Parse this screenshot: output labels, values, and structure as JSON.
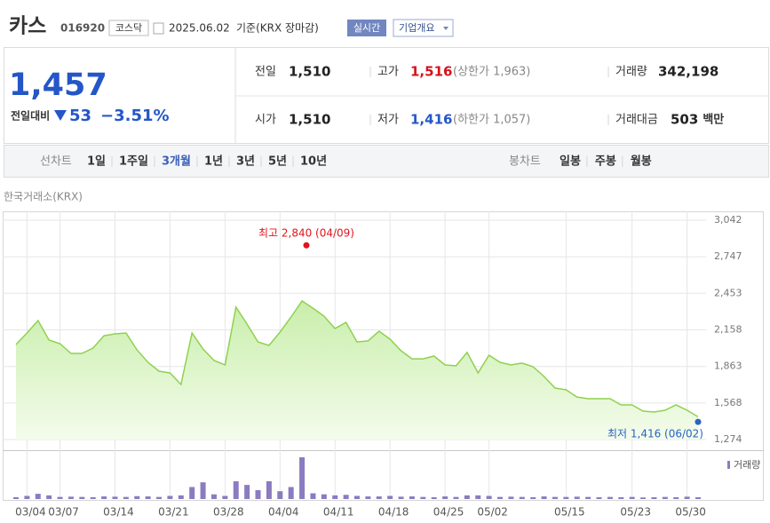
{
  "header": {
    "name": "카스",
    "code": "016920",
    "market": "코스닥",
    "date": "2025.06.02",
    "basis": "기준(KRX 장마감)",
    "realtime": "실시간",
    "company": "기업개요"
  },
  "quote": {
    "price": "1,457",
    "change_label": "전일대비",
    "change": "53",
    "change_pct": "−3.51%",
    "stats": [
      {
        "label": "전일",
        "value": "1,510"
      },
      {
        "label": "고가",
        "value": "1,516",
        "note": "(상한가 1,963)"
      },
      {
        "label": "거래량",
        "value": "342,198"
      },
      {
        "label": "시가",
        "value": "1,510"
      },
      {
        "label": "저가",
        "value": "1,416",
        "note": "(하한가 1,057)"
      },
      {
        "label": "거래대금",
        "value": "503",
        "unit": "백만"
      }
    ]
  },
  "tabs": {
    "line_label": "선차트",
    "line": [
      "1일",
      "1주일",
      "3개월",
      "1년",
      "3년",
      "5년",
      "10년"
    ],
    "selected": 2,
    "candle_label": "봉차트",
    "candle": [
      "일봉",
      "주봉",
      "월봉"
    ]
  },
  "chart_data": [
    {
      "type": "area",
      "subtitle": "한국거래소(KRX)",
      "color": "#8fd14f",
      "categories": [
        null,
        "03/04",
        null,
        null,
        "03/07",
        null,
        null,
        null,
        null,
        "03/14",
        null,
        null,
        null,
        null,
        "03/21",
        null,
        null,
        null,
        null,
        "03/28",
        null,
        null,
        null,
        null,
        "04/04",
        null,
        null,
        null,
        null,
        "04/11",
        null,
        null,
        null,
        null,
        "04/18",
        null,
        null,
        null,
        null,
        "04/25",
        null,
        null,
        null,
        "05/02",
        null,
        null,
        null,
        null,
        null,
        null,
        "05/15",
        null,
        null,
        null,
        null,
        null,
        "05/23",
        null,
        null,
        null,
        null,
        "05/30",
        null
      ],
      "values": [
        2040,
        2133,
        2233,
        2076,
        2047,
        1968,
        1968,
        2011,
        2111,
        2126,
        2133,
        1996,
        1897,
        1825,
        1811,
        1718,
        2133,
        2004,
        1911,
        1875,
        2341,
        2205,
        2061,
        2033,
        2140,
        2262,
        2391,
        2333,
        2269,
        2169,
        2219,
        2061,
        2069,
        2147,
        2083,
        1990,
        1925,
        1925,
        1947,
        1875,
        1868,
        1976,
        1811,
        1954,
        1897,
        1875,
        1890,
        1861,
        1782,
        1689,
        1675,
        1617,
        1603,
        1603,
        1603,
        1553,
        1553,
        1503,
        1496,
        1510,
        1553,
        1510,
        1457
      ],
      "ylim": [
        1274,
        3042
      ],
      "yticks": [
        {
          "value": 1274,
          "label": "1,274"
        },
        {
          "value": 1568,
          "label": "1,568"
        },
        {
          "value": 1863,
          "label": "1,863"
        },
        {
          "value": 2158,
          "label": "2,158"
        },
        {
          "value": 2453,
          "label": "2,453"
        },
        {
          "value": 2747,
          "label": "2,747"
        },
        {
          "value": 3042,
          "label": "3,042"
        }
      ],
      "grid": true,
      "annotations": [
        {
          "text": "최고 2,840 (04/09)",
          "value": 2840,
          "color": "#e0141e"
        },
        {
          "text": "최저 1,416 (06/02)",
          "value": 1416,
          "color": "#2a63c4"
        }
      ]
    },
    {
      "type": "bar",
      "name": "거래량",
      "color": "#8b7bc0",
      "values": [
        350000,
        600000,
        1000000,
        700000,
        400000,
        450000,
        400000,
        350000,
        500000,
        450000,
        400000,
        550000,
        500000,
        400000,
        600000,
        700000,
        2300000,
        3200000,
        900000,
        600000,
        3400000,
        2700000,
        1700000,
        3400000,
        1500000,
        2300000,
        8000000,
        1100000,
        900000,
        700000,
        800000,
        600000,
        500000,
        500000,
        600000,
        450000,
        500000,
        400000,
        350000,
        500000,
        400000,
        700000,
        700000,
        600000,
        400000,
        450000,
        400000,
        350000,
        500000,
        400000,
        400000,
        450000,
        400000,
        350000,
        400000,
        350000,
        400000,
        300000,
        350000,
        400000,
        350000,
        450000,
        342198
      ]
    }
  ]
}
